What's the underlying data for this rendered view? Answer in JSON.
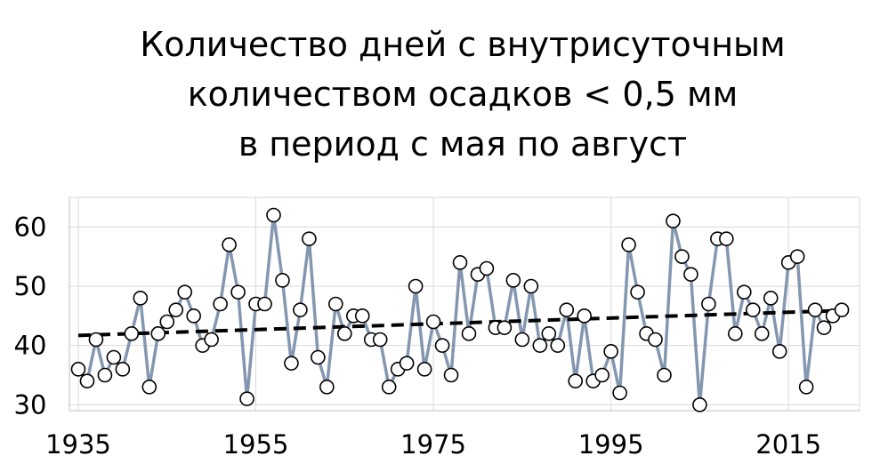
{
  "chart_data": {
    "type": "line",
    "title_lines": [
      "Количество дней с внутрисуточным",
      "количеством осадков < 0,5 мм",
      "в период с мая по август"
    ],
    "xlabel": "",
    "ylabel": "",
    "xlim": [
      1934,
      2023
    ],
    "ylim": [
      29,
      65
    ],
    "x_ticks": [
      1935,
      1955,
      1975,
      1995,
      2015
    ],
    "y_ticks": [
      30,
      40,
      50,
      60
    ],
    "grid": true,
    "legend": "none",
    "colors": {
      "line": "#8497b0",
      "marker_fill": "#ffffff",
      "marker_edge": "#000000",
      "trend": "#000000"
    },
    "series": [
      {
        "x": [
          1935,
          1936,
          1937,
          1938,
          1939,
          1940,
          1941,
          1942,
          1943,
          1944,
          1945,
          1946,
          1947,
          1948,
          1949,
          1950,
          1951,
          1952,
          1953,
          1954,
          1955,
          1956,
          1957,
          1958,
          1959,
          1960,
          1961,
          1962,
          1963,
          1964,
          1965,
          1966,
          1967,
          1968,
          1969,
          1970,
          1971,
          1972,
          1973,
          1974,
          1975,
          1976,
          1977,
          1978,
          1979,
          1980,
          1981,
          1982,
          1983,
          1984,
          1985,
          1986,
          1987,
          1988,
          1989,
          1990,
          1991,
          1992,
          1993,
          1994,
          1995,
          1996,
          1997,
          1998,
          1999,
          2000,
          2001,
          2002,
          2003,
          2004,
          2005,
          2006,
          2007,
          2008,
          2009,
          2010,
          2011,
          2012,
          2013,
          2014,
          2015,
          2016,
          2017,
          2018,
          2019,
          2020,
          2021
        ],
        "y": [
          36,
          34,
          41,
          35,
          38,
          36,
          42,
          48,
          33,
          42,
          44,
          46,
          49,
          45,
          40,
          41,
          47,
          57,
          49,
          31,
          47,
          47,
          62,
          51,
          37,
          46,
          58,
          38,
          33,
          47,
          42,
          45,
          45,
          41,
          41,
          33,
          36,
          37,
          50,
          36,
          44,
          40,
          35,
          54,
          42,
          52,
          53,
          43,
          43,
          51,
          41,
          50,
          40,
          42,
          40,
          46,
          34,
          45,
          34,
          35,
          39,
          32,
          57,
          49,
          42,
          41,
          35,
          61,
          55,
          52,
          30,
          47,
          58,
          58,
          42,
          49,
          46,
          42,
          48,
          39,
          54,
          55,
          33,
          46,
          43,
          45,
          46
        ]
      }
    ],
    "trend": {
      "type": "linear",
      "x": [
        1935,
        2021
      ],
      "y": [
        41.7,
        45.9
      ]
    }
  }
}
